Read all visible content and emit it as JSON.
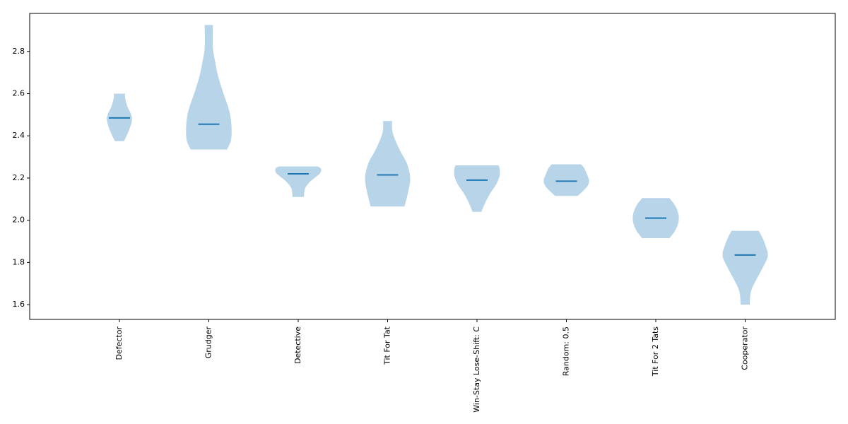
{
  "chart_data": {
    "type": "violin",
    "title": "",
    "xlabel": "",
    "ylabel": "",
    "ylim": [
      1.53,
      2.98
    ],
    "y_ticks": [
      "1.6",
      "1.8",
      "2.0",
      "2.2",
      "2.4",
      "2.6",
      "2.8"
    ],
    "categories": [
      "Defector",
      "Grudger",
      "Detective",
      "Tit For Tat",
      "Win-Stay Lose-Shift: C",
      "Random: 0.5",
      "Tit For 2 Tats",
      "Cooperator"
    ],
    "colors": {
      "body": "#b8d4e8",
      "median": "#1f77b4",
      "axes": "#000000"
    },
    "series": [
      {
        "category": "Defector",
        "median": 2.485,
        "min": 2.375,
        "max": 2.6,
        "profile": [
          [
            2.375,
            0.2
          ],
          [
            2.42,
            0.4
          ],
          [
            2.47,
            0.55
          ],
          [
            2.5,
            0.52
          ],
          [
            2.54,
            0.35
          ],
          [
            2.58,
            0.25
          ],
          [
            2.6,
            0.25
          ]
        ]
      },
      {
        "category": "Grudger",
        "median": 2.455,
        "min": 2.335,
        "max": 2.925,
        "profile": [
          [
            2.335,
            0.8
          ],
          [
            2.38,
            0.98
          ],
          [
            2.45,
            1.0
          ],
          [
            2.52,
            0.9
          ],
          [
            2.6,
            0.65
          ],
          [
            2.68,
            0.42
          ],
          [
            2.75,
            0.28
          ],
          [
            2.82,
            0.18
          ],
          [
            2.925,
            0.18
          ]
        ]
      },
      {
        "category": "Detective",
        "median": 2.22,
        "min": 2.11,
        "max": 2.255,
        "profile": [
          [
            2.11,
            0.25
          ],
          [
            2.15,
            0.3
          ],
          [
            2.18,
            0.5
          ],
          [
            2.2,
            0.72
          ],
          [
            2.225,
            0.98
          ],
          [
            2.245,
            1.0
          ],
          [
            2.255,
            0.85
          ]
        ]
      },
      {
        "category": "Tit For Tat",
        "median": 2.215,
        "min": 2.065,
        "max": 2.47,
        "profile": [
          [
            2.065,
            0.75
          ],
          [
            2.13,
            0.9
          ],
          [
            2.2,
            1.0
          ],
          [
            2.27,
            0.85
          ],
          [
            2.33,
            0.55
          ],
          [
            2.39,
            0.3
          ],
          [
            2.43,
            0.2
          ],
          [
            2.47,
            0.2
          ]
        ]
      },
      {
        "category": "Win-Stay Lose-Shift: C",
        "median": 2.19,
        "min": 2.04,
        "max": 2.26,
        "profile": [
          [
            2.04,
            0.2
          ],
          [
            2.08,
            0.35
          ],
          [
            2.13,
            0.6
          ],
          [
            2.17,
            0.85
          ],
          [
            2.21,
            1.0
          ],
          [
            2.245,
            1.0
          ],
          [
            2.26,
            0.95
          ]
        ]
      },
      {
        "category": "Random: 0.5",
        "median": 2.185,
        "min": 2.115,
        "max": 2.265,
        "profile": [
          [
            2.115,
            0.5
          ],
          [
            2.14,
            0.75
          ],
          [
            2.165,
            0.95
          ],
          [
            2.19,
            1.0
          ],
          [
            2.22,
            0.9
          ],
          [
            2.245,
            0.8
          ],
          [
            2.265,
            0.65
          ]
        ]
      },
      {
        "category": "Tit For 2 Tats",
        "median": 2.01,
        "min": 1.915,
        "max": 2.105,
        "profile": [
          [
            1.915,
            0.6
          ],
          [
            1.95,
            0.85
          ],
          [
            1.99,
            1.0
          ],
          [
            2.03,
            1.0
          ],
          [
            2.07,
            0.85
          ],
          [
            2.105,
            0.6
          ]
        ]
      },
      {
        "category": "Cooperator",
        "median": 1.835,
        "min": 1.6,
        "max": 1.95,
        "profile": [
          [
            1.6,
            0.2
          ],
          [
            1.66,
            0.25
          ],
          [
            1.71,
            0.45
          ],
          [
            1.77,
            0.75
          ],
          [
            1.83,
            1.0
          ],
          [
            1.88,
            0.9
          ],
          [
            1.92,
            0.75
          ],
          [
            1.95,
            0.6
          ]
        ]
      }
    ]
  }
}
